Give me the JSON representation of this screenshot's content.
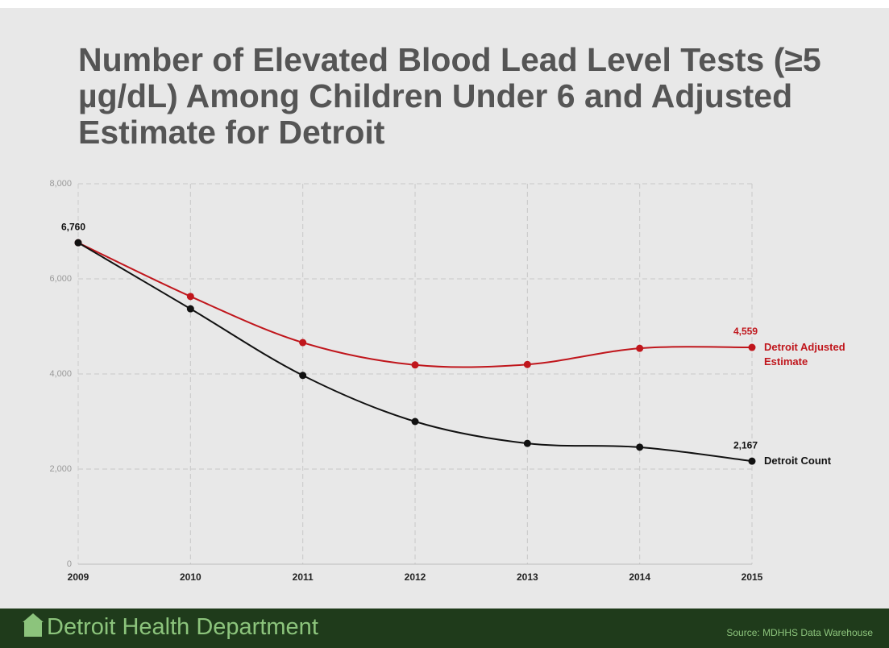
{
  "chart_data": {
    "type": "line",
    "title": "Number of Elevated Blood Lead Level Tests (≥5 µg/dL) Among Children Under 6 and Adjusted Estimate for Detroit",
    "categories": [
      "2009",
      "2010",
      "2011",
      "2012",
      "2013",
      "2014",
      "2015"
    ],
    "series": [
      {
        "name": "Detroit Adjusted Estimate",
        "color": "#c0161c",
        "values": [
          6760,
          5630,
          4660,
          4190,
          4200,
          4540,
          4559
        ],
        "value_labels": [
          null,
          null,
          null,
          null,
          null,
          null,
          "4,559"
        ]
      },
      {
        "name": "Detroit Count",
        "color": "#111111",
        "values": [
          6760,
          5370,
          3970,
          3000,
          2540,
          2460,
          2167
        ],
        "value_labels": [
          "6,760",
          null,
          null,
          null,
          null,
          null,
          "2,167"
        ]
      }
    ],
    "ylim": [
      0,
      8000
    ],
    "yticks": [
      0,
      {
        "value": 2000,
        "label": "2,000"
      },
      {
        "value": 4000,
        "label": "4,000"
      },
      {
        "value": 6000,
        "label": "6,000"
      },
      {
        "value": 8000,
        "label": "8,000"
      }
    ],
    "grid": true
  },
  "footer": {
    "organization": "Detroit Health Department",
    "source": "Source:  MDHHS Data Warehouse"
  }
}
